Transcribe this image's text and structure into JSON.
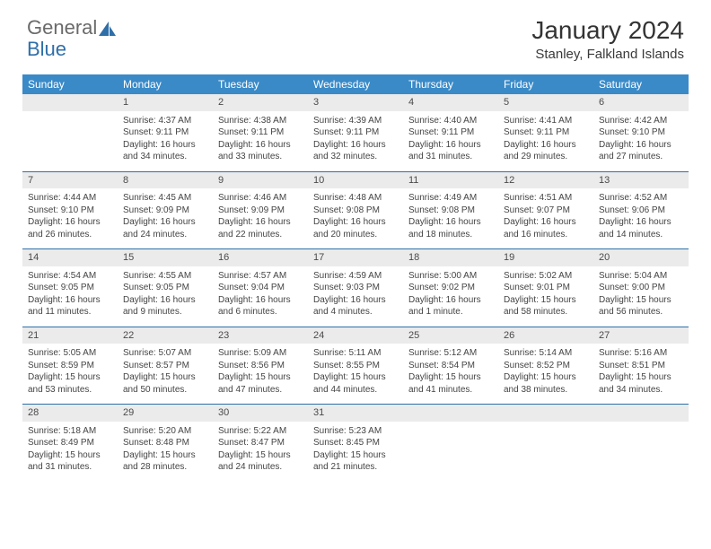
{
  "brand": {
    "part1": "General",
    "part2": "Blue"
  },
  "title": "January 2024",
  "location": "Stanley, Falkland Islands",
  "colors": {
    "header_bg": "#3a8ac8",
    "daynum_bg": "#ebebeb",
    "week_sep": "#2f6fa8",
    "logo_blue": "#2f6fa8",
    "text": "#444444"
  },
  "weekdays": [
    "Sunday",
    "Monday",
    "Tuesday",
    "Wednesday",
    "Thursday",
    "Friday",
    "Saturday"
  ],
  "days": {
    "1": {
      "sunrise": "Sunrise: 4:37 AM",
      "sunset": "Sunset: 9:11 PM",
      "day1": "Daylight: 16 hours",
      "day2": "and 34 minutes."
    },
    "2": {
      "sunrise": "Sunrise: 4:38 AM",
      "sunset": "Sunset: 9:11 PM",
      "day1": "Daylight: 16 hours",
      "day2": "and 33 minutes."
    },
    "3": {
      "sunrise": "Sunrise: 4:39 AM",
      "sunset": "Sunset: 9:11 PM",
      "day1": "Daylight: 16 hours",
      "day2": "and 32 minutes."
    },
    "4": {
      "sunrise": "Sunrise: 4:40 AM",
      "sunset": "Sunset: 9:11 PM",
      "day1": "Daylight: 16 hours",
      "day2": "and 31 minutes."
    },
    "5": {
      "sunrise": "Sunrise: 4:41 AM",
      "sunset": "Sunset: 9:11 PM",
      "day1": "Daylight: 16 hours",
      "day2": "and 29 minutes."
    },
    "6": {
      "sunrise": "Sunrise: 4:42 AM",
      "sunset": "Sunset: 9:10 PM",
      "day1": "Daylight: 16 hours",
      "day2": "and 27 minutes."
    },
    "7": {
      "sunrise": "Sunrise: 4:44 AM",
      "sunset": "Sunset: 9:10 PM",
      "day1": "Daylight: 16 hours",
      "day2": "and 26 minutes."
    },
    "8": {
      "sunrise": "Sunrise: 4:45 AM",
      "sunset": "Sunset: 9:09 PM",
      "day1": "Daylight: 16 hours",
      "day2": "and 24 minutes."
    },
    "9": {
      "sunrise": "Sunrise: 4:46 AM",
      "sunset": "Sunset: 9:09 PM",
      "day1": "Daylight: 16 hours",
      "day2": "and 22 minutes."
    },
    "10": {
      "sunrise": "Sunrise: 4:48 AM",
      "sunset": "Sunset: 9:08 PM",
      "day1": "Daylight: 16 hours",
      "day2": "and 20 minutes."
    },
    "11": {
      "sunrise": "Sunrise: 4:49 AM",
      "sunset": "Sunset: 9:08 PM",
      "day1": "Daylight: 16 hours",
      "day2": "and 18 minutes."
    },
    "12": {
      "sunrise": "Sunrise: 4:51 AM",
      "sunset": "Sunset: 9:07 PM",
      "day1": "Daylight: 16 hours",
      "day2": "and 16 minutes."
    },
    "13": {
      "sunrise": "Sunrise: 4:52 AM",
      "sunset": "Sunset: 9:06 PM",
      "day1": "Daylight: 16 hours",
      "day2": "and 14 minutes."
    },
    "14": {
      "sunrise": "Sunrise: 4:54 AM",
      "sunset": "Sunset: 9:05 PM",
      "day1": "Daylight: 16 hours",
      "day2": "and 11 minutes."
    },
    "15": {
      "sunrise": "Sunrise: 4:55 AM",
      "sunset": "Sunset: 9:05 PM",
      "day1": "Daylight: 16 hours",
      "day2": "and 9 minutes."
    },
    "16": {
      "sunrise": "Sunrise: 4:57 AM",
      "sunset": "Sunset: 9:04 PM",
      "day1": "Daylight: 16 hours",
      "day2": "and 6 minutes."
    },
    "17": {
      "sunrise": "Sunrise: 4:59 AM",
      "sunset": "Sunset: 9:03 PM",
      "day1": "Daylight: 16 hours",
      "day2": "and 4 minutes."
    },
    "18": {
      "sunrise": "Sunrise: 5:00 AM",
      "sunset": "Sunset: 9:02 PM",
      "day1": "Daylight: 16 hours",
      "day2": "and 1 minute."
    },
    "19": {
      "sunrise": "Sunrise: 5:02 AM",
      "sunset": "Sunset: 9:01 PM",
      "day1": "Daylight: 15 hours",
      "day2": "and 58 minutes."
    },
    "20": {
      "sunrise": "Sunrise: 5:04 AM",
      "sunset": "Sunset: 9:00 PM",
      "day1": "Daylight: 15 hours",
      "day2": "and 56 minutes."
    },
    "21": {
      "sunrise": "Sunrise: 5:05 AM",
      "sunset": "Sunset: 8:59 PM",
      "day1": "Daylight: 15 hours",
      "day2": "and 53 minutes."
    },
    "22": {
      "sunrise": "Sunrise: 5:07 AM",
      "sunset": "Sunset: 8:57 PM",
      "day1": "Daylight: 15 hours",
      "day2": "and 50 minutes."
    },
    "23": {
      "sunrise": "Sunrise: 5:09 AM",
      "sunset": "Sunset: 8:56 PM",
      "day1": "Daylight: 15 hours",
      "day2": "and 47 minutes."
    },
    "24": {
      "sunrise": "Sunrise: 5:11 AM",
      "sunset": "Sunset: 8:55 PM",
      "day1": "Daylight: 15 hours",
      "day2": "and 44 minutes."
    },
    "25": {
      "sunrise": "Sunrise: 5:12 AM",
      "sunset": "Sunset: 8:54 PM",
      "day1": "Daylight: 15 hours",
      "day2": "and 41 minutes."
    },
    "26": {
      "sunrise": "Sunrise: 5:14 AM",
      "sunset": "Sunset: 8:52 PM",
      "day1": "Daylight: 15 hours",
      "day2": "and 38 minutes."
    },
    "27": {
      "sunrise": "Sunrise: 5:16 AM",
      "sunset": "Sunset: 8:51 PM",
      "day1": "Daylight: 15 hours",
      "day2": "and 34 minutes."
    },
    "28": {
      "sunrise": "Sunrise: 5:18 AM",
      "sunset": "Sunset: 8:49 PM",
      "day1": "Daylight: 15 hours",
      "day2": "and 31 minutes."
    },
    "29": {
      "sunrise": "Sunrise: 5:20 AM",
      "sunset": "Sunset: 8:48 PM",
      "day1": "Daylight: 15 hours",
      "day2": "and 28 minutes."
    },
    "30": {
      "sunrise": "Sunrise: 5:22 AM",
      "sunset": "Sunset: 8:47 PM",
      "day1": "Daylight: 15 hours",
      "day2": "and 24 minutes."
    },
    "31": {
      "sunrise": "Sunrise: 5:23 AM",
      "sunset": "Sunset: 8:45 PM",
      "day1": "Daylight: 15 hours",
      "day2": "and 21 minutes."
    }
  },
  "grid": [
    [
      null,
      1,
      2,
      3,
      4,
      5,
      6
    ],
    [
      7,
      8,
      9,
      10,
      11,
      12,
      13
    ],
    [
      14,
      15,
      16,
      17,
      18,
      19,
      20
    ],
    [
      21,
      22,
      23,
      24,
      25,
      26,
      27
    ],
    [
      28,
      29,
      30,
      31,
      null,
      null,
      null
    ]
  ]
}
